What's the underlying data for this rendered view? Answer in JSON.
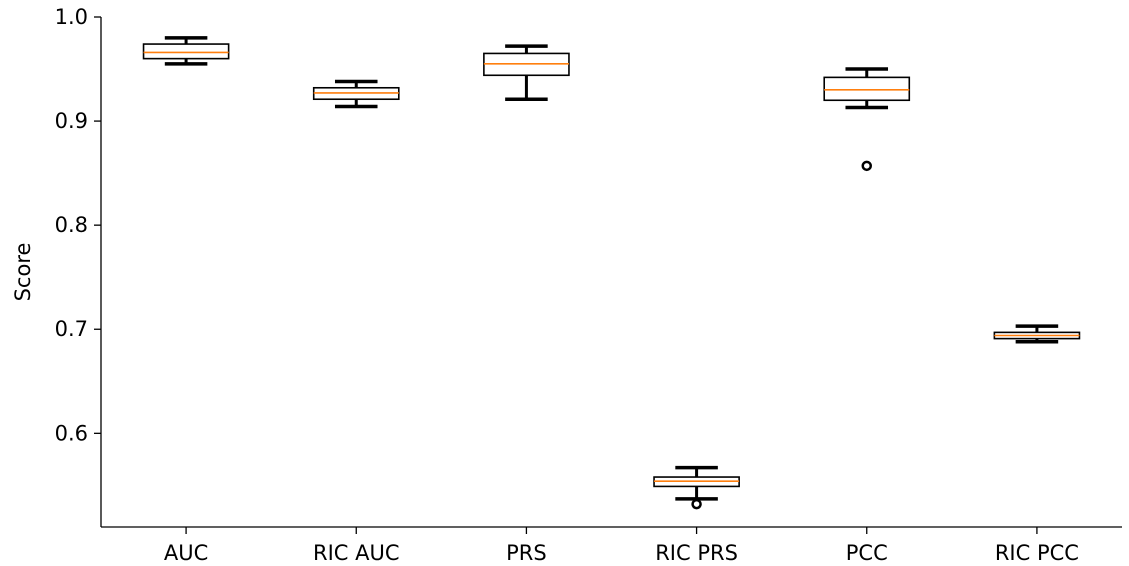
{
  "chart_data": {
    "type": "box",
    "title": "",
    "xlabel": "",
    "ylabel": "Score",
    "ylim": [
      0.51,
      1.0
    ],
    "yticks": [
      "0.6",
      "0.7",
      "0.8",
      "0.9",
      "1.0"
    ],
    "grid": false,
    "categories": [
      "AUC",
      "RIC AUC",
      "PRS",
      "RIC PRS",
      "PCC",
      "RIC PCC"
    ],
    "boxes": [
      {
        "whisker_low": 0.955,
        "q1": 0.96,
        "median": 0.966,
        "q3": 0.974,
        "whisker_high": 0.98,
        "outliers": []
      },
      {
        "whisker_low": 0.914,
        "q1": 0.921,
        "median": 0.927,
        "q3": 0.932,
        "whisker_high": 0.938,
        "outliers": []
      },
      {
        "whisker_low": 0.921,
        "q1": 0.944,
        "median": 0.955,
        "q3": 0.965,
        "whisker_high": 0.972,
        "outliers": []
      },
      {
        "whisker_low": 0.537,
        "q1": 0.549,
        "median": 0.554,
        "q3": 0.558,
        "whisker_high": 0.567,
        "outliers": [
          0.532
        ]
      },
      {
        "whisker_low": 0.913,
        "q1": 0.92,
        "median": 0.93,
        "q3": 0.942,
        "whisker_high": 0.95,
        "outliers": [
          0.857
        ]
      },
      {
        "whisker_low": 0.688,
        "q1": 0.691,
        "median": 0.694,
        "q3": 0.697,
        "whisker_high": 0.703,
        "outliers": []
      }
    ],
    "colors": {
      "box": "#000000",
      "median": "#ff7f0e",
      "axis": "#000000"
    }
  }
}
